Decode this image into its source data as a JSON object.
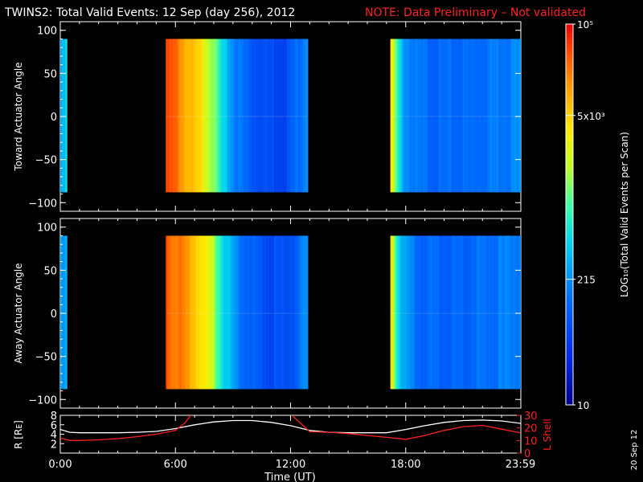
{
  "title": {
    "main": "TWINS2: Total Valid Events: 12 Sep (day 256), 2012",
    "note": "NOTE: Data Preliminary – Not validated",
    "note_color": "#ff2020"
  },
  "date_stamp": "20 Sep 12",
  "chart_data": [
    {
      "type": "heatmap",
      "name": "toward-panel",
      "ylabel": "Toward Actuator Angle",
      "ylim": [
        -110,
        110
      ],
      "y_ticks": [
        100,
        50,
        0,
        -50,
        -100
      ],
      "y_tick_labels": [
        "100",
        "50",
        "0",
        "−50",
        "−100"
      ],
      "data_yrange": [
        -88,
        90
      ],
      "xlim_hours": [
        0,
        24
      ],
      "segments": [
        {
          "t_start": 0.0,
          "t_end": 0.35,
          "profile": [
            [
              0,
              0.38
            ],
            [
              0.5,
              0.36
            ],
            [
              1,
              0.45
            ]
          ]
        },
        {
          "t_start": 5.5,
          "t_end": 12.9,
          "profile": [
            [
              0,
              0.92
            ],
            [
              0.08,
              0.88
            ],
            [
              0.15,
              0.8
            ],
            [
              0.25,
              0.72
            ],
            [
              0.33,
              0.6
            ],
            [
              0.4,
              0.42
            ],
            [
              0.5,
              0.3
            ],
            [
              0.6,
              0.24
            ],
            [
              0.72,
              0.2
            ],
            [
              0.85,
              0.2
            ],
            [
              0.93,
              0.28
            ],
            [
              1,
              0.35
            ]
          ]
        },
        {
          "t_start": 17.2,
          "t_end": 24.0,
          "profile": [
            [
              0,
              0.75
            ],
            [
              0.05,
              0.5
            ],
            [
              0.1,
              0.35
            ],
            [
              0.2,
              0.28
            ],
            [
              0.4,
              0.26
            ],
            [
              0.6,
              0.27
            ],
            [
              0.8,
              0.3
            ],
            [
              1,
              0.32
            ]
          ]
        }
      ]
    },
    {
      "type": "heatmap",
      "name": "away-panel",
      "ylabel": "Away Actuator Angle",
      "ylim": [
        -110,
        110
      ],
      "y_ticks": [
        100,
        50,
        0,
        -50,
        -100
      ],
      "y_tick_labels": [
        "100",
        "50",
        "0",
        "−50",
        "−100"
      ],
      "data_yrange": [
        -88,
        90
      ],
      "xlim_hours": [
        0,
        24
      ],
      "segments": [
        {
          "t_start": 0.0,
          "t_end": 0.35,
          "profile": [
            [
              0,
              0.36
            ],
            [
              0.5,
              0.34
            ],
            [
              1,
              0.42
            ]
          ]
        },
        {
          "t_start": 5.5,
          "t_end": 12.9,
          "profile": [
            [
              0,
              0.92
            ],
            [
              0.08,
              0.88
            ],
            [
              0.15,
              0.82
            ],
            [
              0.25,
              0.74
            ],
            [
              0.33,
              0.62
            ],
            [
              0.4,
              0.45
            ],
            [
              0.5,
              0.32
            ],
            [
              0.6,
              0.25
            ],
            [
              0.72,
              0.21
            ],
            [
              0.85,
              0.2
            ],
            [
              0.93,
              0.25
            ],
            [
              1,
              0.33
            ]
          ]
        },
        {
          "t_start": 17.2,
          "t_end": 24.0,
          "profile": [
            [
              0,
              0.75
            ],
            [
              0.05,
              0.5
            ],
            [
              0.1,
              0.35
            ],
            [
              0.2,
              0.27
            ],
            [
              0.4,
              0.25
            ],
            [
              0.6,
              0.27
            ],
            [
              0.8,
              0.29
            ],
            [
              1,
              0.31
            ]
          ]
        }
      ]
    },
    {
      "type": "line",
      "name": "orbit-panel",
      "ylabel_left": "R [Rᴇ]",
      "ylim_left": [
        0,
        8
      ],
      "y_ticks_left": [
        "2",
        "4",
        "6",
        "8"
      ],
      "ylabel_right": "L Shell",
      "ylim_right": [
        0,
        30
      ],
      "y_ticks_right": [
        "0",
        "10",
        "20",
        "30"
      ],
      "right_color": "#ff2020",
      "series": [
        {
          "name": "R",
          "color": "#ffffff",
          "axis": "left",
          "x": [
            0,
            0.5,
            1,
            2,
            3,
            4,
            5,
            6,
            7,
            8,
            9,
            10,
            11,
            12,
            13,
            14,
            15,
            16,
            17,
            18,
            19,
            20,
            21,
            22,
            23,
            23.99
          ],
          "y": [
            5.0,
            4.4,
            4.3,
            4.3,
            4.3,
            4.4,
            4.6,
            5.2,
            6.0,
            6.6,
            6.9,
            6.9,
            6.5,
            5.8,
            4.8,
            4.4,
            4.3,
            4.3,
            4.3,
            5.0,
            5.8,
            6.5,
            6.9,
            7.0,
            6.8,
            6.3
          ]
        },
        {
          "name": "L Shell",
          "color": "#ff2020",
          "axis": "right",
          "x": [
            0,
            0.5,
            1,
            2,
            3,
            4,
            5,
            6,
            6.5,
            6.85,
            12.0,
            12.5,
            13,
            14,
            15,
            16,
            17,
            18,
            19,
            20,
            21,
            22,
            23,
            23.99
          ],
          "y": [
            12,
            10,
            10,
            10.5,
            11.5,
            13,
            15,
            18,
            24,
            31,
            31,
            24,
            17,
            16.5,
            15.5,
            14,
            12.5,
            11,
            14,
            18,
            21,
            22,
            19,
            16
          ]
        }
      ]
    },
    {
      "type": "colorbar",
      "name": "colorbar",
      "label": "LOG₁₀(Total Valid Events per Scan)",
      "tick_labels": [
        "10⁵",
        "5x10³",
        "215",
        "10"
      ],
      "tick_positions": [
        1.0,
        0.76,
        0.33,
        0.0
      ]
    }
  ],
  "x_axis": {
    "xlabel": "Time (UT)",
    "tick_labels": [
      "0:00",
      "6:00",
      "12:00",
      "18:00",
      "23:59"
    ],
    "tick_hours": [
      0,
      6,
      12,
      18,
      23.98
    ]
  }
}
